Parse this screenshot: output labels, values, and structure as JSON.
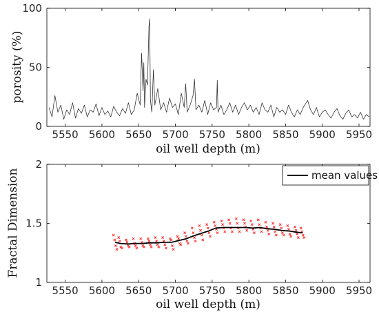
{
  "chart_data": [
    {
      "type": "line",
      "xlabel": "oil well depth (m)",
      "ylabel": "porosity (%)",
      "xlim": [
        5525,
        5965
      ],
      "ylim": [
        0,
        100
      ],
      "x_ticks": [
        5550,
        5600,
        5650,
        5700,
        5750,
        5800,
        5850,
        5900,
        5950
      ],
      "y_ticks": [
        0,
        50,
        100
      ],
      "color": "#333333",
      "series": [
        {
          "x": [
            5528,
            5532,
            5536,
            5540,
            5544,
            5548,
            5552,
            5556,
            5560,
            5564,
            5568,
            5572,
            5576,
            5580,
            5584,
            5588,
            5592,
            5596,
            5600,
            5604,
            5608,
            5612,
            5616,
            5620,
            5624,
            5628,
            5632,
            5636,
            5640,
            5644,
            5648,
            5652,
            5654,
            5656,
            5657,
            5658,
            5660,
            5662,
            5664,
            5665,
            5666,
            5668,
            5670,
            5672,
            5676,
            5680,
            5684,
            5688,
            5692,
            5696,
            5700,
            5704,
            5708,
            5712,
            5714,
            5716,
            5720,
            5724,
            5726,
            5728,
            5732,
            5736,
            5740,
            5744,
            5748,
            5752,
            5756,
            5757,
            5758,
            5762,
            5766,
            5770,
            5774,
            5778,
            5782,
            5786,
            5790,
            5794,
            5798,
            5802,
            5806,
            5810,
            5814,
            5818,
            5822,
            5826,
            5830,
            5834,
            5838,
            5842,
            5846,
            5850,
            5854,
            5858,
            5862,
            5866,
            5870,
            5874,
            5878,
            5880,
            5884,
            5888,
            5892,
            5896,
            5900,
            5904,
            5908,
            5912,
            5916,
            5920,
            5924,
            5928,
            5932,
            5936,
            5940,
            5944,
            5948,
            5952,
            5956,
            5960,
            5964
          ],
          "y": [
            16,
            8,
            26,
            12,
            18,
            6,
            14,
            10,
            20,
            7,
            15,
            11,
            18,
            8,
            14,
            12,
            19,
            9,
            16,
            10,
            13,
            8,
            17,
            12,
            9,
            15,
            11,
            20,
            10,
            14,
            28,
            18,
            62,
            30,
            54,
            16,
            40,
            35,
            85,
            91,
            22,
            12,
            48,
            18,
            32,
            14,
            20,
            12,
            24,
            16,
            19,
            10,
            28,
            16,
            36,
            12,
            18,
            26,
            40,
            14,
            18,
            12,
            22,
            10,
            20,
            14,
            16,
            39,
            12,
            18,
            10,
            14,
            20,
            12,
            18,
            10,
            16,
            20,
            14,
            18,
            12,
            16,
            10,
            20,
            14,
            12,
            18,
            8,
            16,
            12,
            14,
            10,
            18,
            12,
            8,
            14,
            10,
            16,
            20,
            22,
            14,
            10,
            16,
            8,
            12,
            14,
            10,
            7,
            12,
            15,
            9,
            6,
            11,
            14,
            8,
            10,
            7,
            12,
            6,
            10,
            8
          ]
        }
      ]
    },
    {
      "type": "line",
      "xlabel": "oil well depth (m)",
      "ylabel": "Fractal Dimension",
      "xlim": [
        5525,
        5965
      ],
      "ylim": [
        1,
        2
      ],
      "x_ticks": [
        5550,
        5600,
        5650,
        5700,
        5750,
        5800,
        5850,
        5900,
        5950
      ],
      "y_ticks": [
        1,
        1.5,
        2
      ],
      "legend": {
        "position": "top-right",
        "label": "mean values"
      },
      "mean_color": "#000000",
      "scatter_color": "#ff2a2a",
      "series": [
        {
          "name": "mean values",
          "x": [
            5618,
            5625,
            5635,
            5645,
            5655,
            5665,
            5675,
            5685,
            5695,
            5705,
            5715,
            5725,
            5735,
            5745,
            5755,
            5765,
            5775,
            5785,
            5795,
            5805,
            5815,
            5825,
            5835,
            5845,
            5855,
            5865,
            5873
          ],
          "y": [
            1.34,
            1.33,
            1.325,
            1.33,
            1.33,
            1.335,
            1.335,
            1.34,
            1.34,
            1.355,
            1.37,
            1.395,
            1.415,
            1.435,
            1.46,
            1.465,
            1.465,
            1.465,
            1.465,
            1.46,
            1.465,
            1.455,
            1.45,
            1.44,
            1.435,
            1.425,
            1.42
          ]
        },
        {
          "name": "",
          "type": "scatter",
          "x": [
            5618,
            5618,
            5618,
            5618,
            5625,
            5625,
            5625,
            5625,
            5635,
            5635,
            5635,
            5635,
            5645,
            5645,
            5645,
            5645,
            5655,
            5655,
            5655,
            5655,
            5665,
            5665,
            5665,
            5665,
            5675,
            5675,
            5675,
            5675,
            5685,
            5685,
            5685,
            5685,
            5695,
            5695,
            5695,
            5695,
            5705,
            5705,
            5705,
            5705,
            5715,
            5715,
            5715,
            5715,
            5725,
            5725,
            5725,
            5725,
            5735,
            5735,
            5735,
            5735,
            5745,
            5745,
            5745,
            5745,
            5755,
            5755,
            5755,
            5755,
            5765,
            5765,
            5765,
            5765,
            5775,
            5775,
            5775,
            5775,
            5785,
            5785,
            5785,
            5785,
            5795,
            5795,
            5795,
            5795,
            5805,
            5805,
            5805,
            5805,
            5815,
            5815,
            5815,
            5815,
            5825,
            5825,
            5825,
            5825,
            5835,
            5835,
            5835,
            5835,
            5845,
            5845,
            5845,
            5845,
            5855,
            5855,
            5855,
            5855,
            5865,
            5865,
            5865,
            5865,
            5873,
            5873,
            5873,
            5873
          ],
          "y": [
            1.4,
            1.36,
            1.31,
            1.28,
            1.38,
            1.35,
            1.3,
            1.29,
            1.36,
            1.34,
            1.31,
            1.3,
            1.37,
            1.33,
            1.31,
            1.29,
            1.37,
            1.34,
            1.31,
            1.3,
            1.37,
            1.35,
            1.32,
            1.3,
            1.38,
            1.35,
            1.32,
            1.3,
            1.38,
            1.35,
            1.32,
            1.29,
            1.37,
            1.36,
            1.31,
            1.28,
            1.39,
            1.37,
            1.33,
            1.32,
            1.42,
            1.39,
            1.35,
            1.33,
            1.46,
            1.42,
            1.38,
            1.35,
            1.48,
            1.44,
            1.4,
            1.36,
            1.49,
            1.46,
            1.42,
            1.39,
            1.51,
            1.48,
            1.45,
            1.42,
            1.52,
            1.49,
            1.46,
            1.43,
            1.53,
            1.5,
            1.46,
            1.43,
            1.54,
            1.5,
            1.46,
            1.43,
            1.53,
            1.5,
            1.47,
            1.44,
            1.52,
            1.49,
            1.45,
            1.42,
            1.53,
            1.49,
            1.46,
            1.43,
            1.51,
            1.47,
            1.44,
            1.41,
            1.5,
            1.47,
            1.43,
            1.4,
            1.49,
            1.46,
            1.42,
            1.4,
            1.48,
            1.45,
            1.41,
            1.39,
            1.47,
            1.44,
            1.41,
            1.38,
            1.46,
            1.43,
            1.4,
            1.38
          ]
        }
      ]
    }
  ]
}
